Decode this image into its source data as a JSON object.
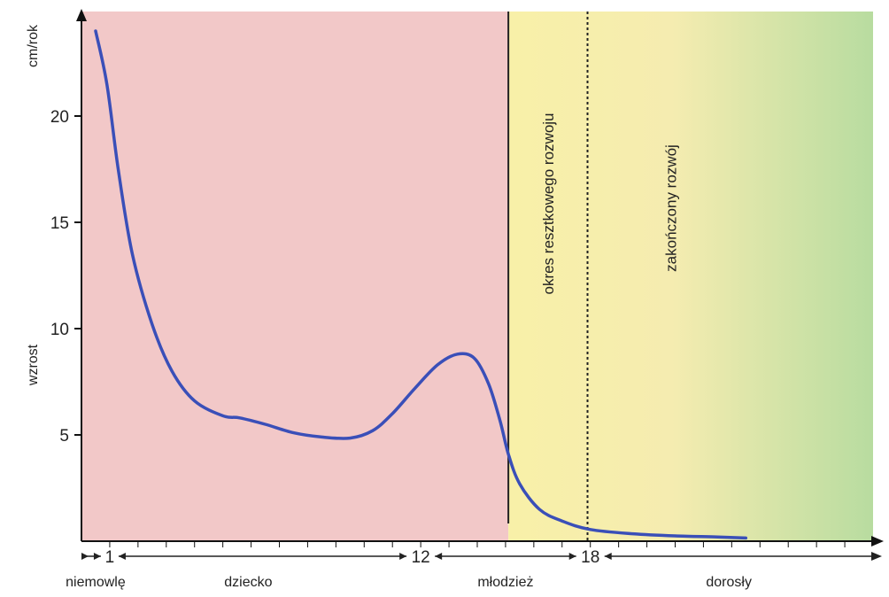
{
  "chart_data": {
    "type": "line",
    "ylabel": "wzrost",
    "yunit": "cm/rok",
    "yticks": [
      5,
      10,
      15,
      20
    ],
    "ylim": [
      0,
      25
    ],
    "xlim": [
      0,
      28
    ],
    "age_marks": [
      {
        "age": 1,
        "label": "1"
      },
      {
        "age": 12,
        "label": "12"
      },
      {
        "age": 18,
        "label": "18"
      }
    ],
    "phases": [
      {
        "label": "niemowlę",
        "center_age": 0.5
      },
      {
        "label": "dziecko",
        "center_age": 5.9
      },
      {
        "label": "młodzież",
        "center_age": 15
      },
      {
        "label": "dorosły",
        "center_age": 22.9
      }
    ],
    "regions": [
      {
        "name": "growth",
        "from_age": 0,
        "to_age": 15.1,
        "color": "#f2c8c8"
      },
      {
        "name": "residual",
        "from_age": 15.1,
        "to_age": 28,
        "color_start": "#f8f0a8",
        "color_end": "#b8dca0"
      }
    ],
    "region_labels": [
      "okres resztkowego rozwoju",
      "zakończony rozwój"
    ],
    "vlines": [
      {
        "age": 15.1,
        "style": "solid"
      },
      {
        "age": 17.9,
        "style": "dotted"
      }
    ],
    "series": [
      {
        "color": "#3a4fb8",
        "x": [
          0.5,
          0.9,
          1.3,
          1.8,
          2.5,
          3.2,
          4.0,
          5.0,
          5.6,
          6.5,
          7.5,
          8.5,
          9.5,
          10.3,
          11.0,
          11.8,
          12.6,
          13.3,
          13.9,
          14.4,
          14.8,
          15.1,
          15.5,
          16.2,
          17.0,
          18.0,
          19.5,
          21.0,
          22.5,
          23.5
        ],
        "values": [
          24,
          21.5,
          17.5,
          13.5,
          10.2,
          8.0,
          6.6,
          5.9,
          5.8,
          5.5,
          5.1,
          4.9,
          4.85,
          5.2,
          6.0,
          7.2,
          8.3,
          8.8,
          8.6,
          7.4,
          5.7,
          4.1,
          2.7,
          1.5,
          0.95,
          0.55,
          0.35,
          0.25,
          0.2,
          0.15
        ]
      }
    ]
  }
}
